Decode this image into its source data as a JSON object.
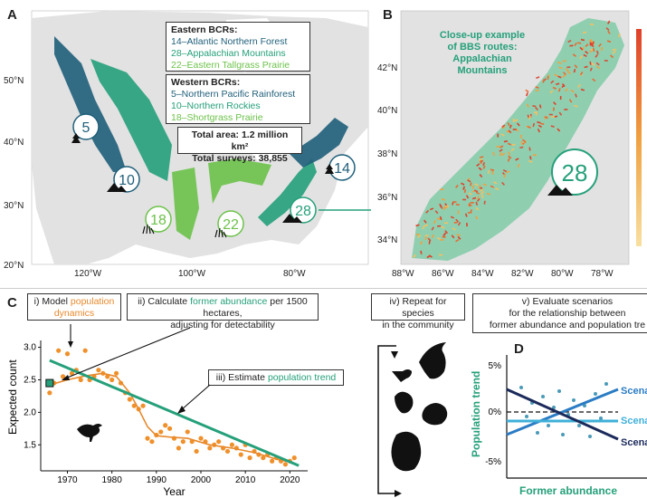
{
  "colors": {
    "dark_blue": "#1f5f7a",
    "teal": "#25a07a",
    "lime": "#6cc24a",
    "orange": "#e8892b",
    "scenario_dark": "#1b2a5a",
    "scenario_blue": "#2b7cc4",
    "scenario_light": "#3fb0d8",
    "land": "#e2e2e2",
    "ocean": "#ffffff"
  },
  "panel_a": {
    "letter": "A",
    "eastern_title": "Eastern BCRs:",
    "eastern": [
      "14–Atlantic Northern Forest",
      "28–Appalachian Mountains",
      "22–Eastern Tallgrass Prairie"
    ],
    "western_title": "Western BCRs:",
    "western": [
      "5–Northern Pacific Rainforest",
      "10–Northern Rockies",
      "18–Shortgrass Prairie"
    ],
    "total_area": "Total area: 1.2 million km²",
    "total_surveys": "Total surveys: 38,855",
    "lat_ticks": [
      "50°N",
      "40°N",
      "30°N",
      "20°N"
    ],
    "lon_ticks": [
      "120°W",
      "100°W",
      "80°W"
    ],
    "badges": [
      "5",
      "10",
      "18",
      "22",
      "28",
      "14"
    ]
  },
  "panel_b": {
    "letter": "B",
    "caption": [
      "Close-up example",
      "of BBS routes:",
      "Appalachian",
      "Mountains"
    ],
    "badge": "28",
    "lat_ticks": [
      "42°N",
      "40°N",
      "38°N",
      "36°N",
      "34°N"
    ],
    "lon_ticks": [
      "88°W",
      "86°W",
      "84°W",
      "82°W",
      "80°W",
      "78°W"
    ]
  },
  "panel_c": {
    "letter": "C",
    "step1_prefix": "i) Model ",
    "step1_highlight": "population dynamics",
    "step2_prefix": "ii) Calculate ",
    "step2_highlight": "former abundance",
    "step2_suffix": " per 1500 hectares,",
    "step2_line2": "adjusting for detectability",
    "step3_prefix": "iii) Estimate ",
    "step3_highlight": "population trend"
  },
  "panel_iv": {
    "label_line1": "iv) Repeat for species",
    "label_line2": "in the community"
  },
  "panel_v": {
    "label_line1": "v) Evaluate scenarios",
    "label_line2": "for the relationship between",
    "label_line3": "former abundance and population tre"
  },
  "panel_d": {
    "letter": "D",
    "ylabel": "Population trend",
    "xlabel": "Former abundance",
    "yticks": [
      "5%",
      "0%",
      "-5%"
    ],
    "scenario_labels": [
      "Scena",
      "Scena",
      "Scena"
    ]
  },
  "chart_data": {
    "type": "scatter",
    "xlabel": "Year",
    "ylabel": "Expected count",
    "xlim": [
      1964,
      2024
    ],
    "ylim": [
      1.1,
      3.05
    ],
    "xticks": [
      1970,
      1980,
      1990,
      2000,
      2010,
      2020
    ],
    "yticks": [
      1.5,
      2.0,
      2.5,
      3.0
    ],
    "points": [
      [
        1966,
        2.3
      ],
      [
        1967,
        2.45
      ],
      [
        1968,
        2.95
      ],
      [
        1969,
        2.55
      ],
      [
        1970,
        2.9
      ],
      [
        1971,
        2.6
      ],
      [
        1972,
        2.65
      ],
      [
        1973,
        2.5
      ],
      [
        1974,
        2.95
      ],
      [
        1975,
        2.5
      ],
      [
        1976,
        2.55
      ],
      [
        1977,
        2.65
      ],
      [
        1978,
        2.6
      ],
      [
        1979,
        2.55
      ],
      [
        1980,
        2.5
      ],
      [
        1981,
        2.6
      ],
      [
        1982,
        2.45
      ],
      [
        1983,
        2.3
      ],
      [
        1984,
        2.2
      ],
      [
        1985,
        2.1
      ],
      [
        1986,
        2.05
      ],
      [
        1987,
        2.1
      ],
      [
        1988,
        1.6
      ],
      [
        1989,
        1.55
      ],
      [
        1990,
        1.65
      ],
      [
        1991,
        1.7
      ],
      [
        1992,
        1.8
      ],
      [
        1993,
        1.75
      ],
      [
        1994,
        1.6
      ],
      [
        1995,
        1.45
      ],
      [
        1996,
        1.55
      ],
      [
        1997,
        1.7
      ],
      [
        1998,
        1.55
      ],
      [
        1999,
        1.4
      ],
      [
        2000,
        1.6
      ],
      [
        2001,
        1.55
      ],
      [
        2002,
        1.45
      ],
      [
        2003,
        1.5
      ],
      [
        2004,
        1.55
      ],
      [
        2005,
        1.45
      ],
      [
        2006,
        1.4
      ],
      [
        2007,
        1.5
      ],
      [
        2008,
        1.45
      ],
      [
        2009,
        1.35
      ],
      [
        2010,
        1.5
      ],
      [
        2011,
        1.3
      ],
      [
        2012,
        1.4
      ],
      [
        2013,
        1.35
      ],
      [
        2014,
        1.3
      ],
      [
        2015,
        1.35
      ],
      [
        2016,
        1.25
      ],
      [
        2017,
        1.3
      ],
      [
        2018,
        1.25
      ],
      [
        2019,
        1.2
      ],
      [
        2020,
        1.25
      ],
      [
        2021,
        1.3
      ]
    ],
    "smooth_line": [
      [
        1966,
        2.42
      ],
      [
        1970,
        2.5
      ],
      [
        1974,
        2.56
      ],
      [
        1978,
        2.6
      ],
      [
        1981,
        2.55
      ],
      [
        1984,
        2.3
      ],
      [
        1986,
        2.05
      ],
      [
        1988,
        1.78
      ],
      [
        1990,
        1.64
      ],
      [
        1993,
        1.62
      ],
      [
        1997,
        1.6
      ],
      [
        2002,
        1.5
      ],
      [
        2007,
        1.45
      ],
      [
        2012,
        1.38
      ],
      [
        2017,
        1.28
      ],
      [
        2021,
        1.22
      ]
    ],
    "trend_line": [
      [
        1966,
        2.8
      ],
      [
        2022,
        1.18
      ]
    ],
    "former_abundance_point": [
      1966,
      2.45
    ]
  }
}
